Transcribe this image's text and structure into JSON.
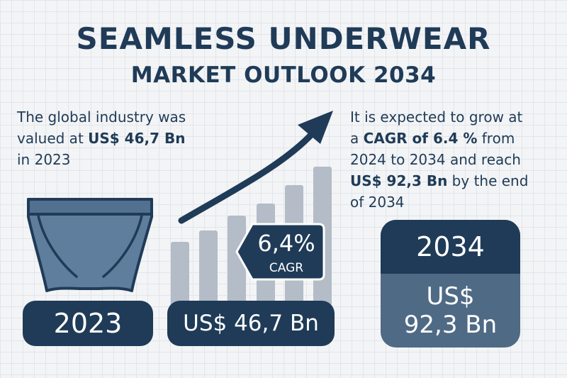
{
  "header": {
    "title_line1": "SEAMLESS UNDERWEAR",
    "title_line2": "MARKET OUTLOOK 2034"
  },
  "left_text": {
    "line1": "The global industry was",
    "line2_prefix": "valued at ",
    "line2_bold": "US$ 46,7 Bn",
    "line3": "in 2023"
  },
  "right_text": {
    "line1": "It is expected to grow at",
    "line2_prefix": "a ",
    "line2_bold": "CAGR of 6.4 %",
    "line2_suffix": " from",
    "line3": "2024 to 2034 and reach",
    "line4_bold": "US$ 92,3 Bn",
    "line4_suffix": " by the end",
    "line5": "of 2034"
  },
  "pills": {
    "year_2023": "2023",
    "value_2023": "US$ 46,7 Bn"
  },
  "cagr_badge": {
    "value": "6,4%",
    "label": "CAGR"
  },
  "box_2034": {
    "year": "2034",
    "currency": "US$",
    "amount": "92,3 Bn"
  },
  "icons": {
    "underwear": "underwear-icon",
    "trend_arrow": "trend-arrow-icon"
  },
  "colors": {
    "navy": "#1f3b57",
    "slate": "#4f6a85",
    "bar_gray": "#b3bcc7",
    "underwear_fill": "#5f7d9c",
    "background": "#f3f4f6"
  }
}
